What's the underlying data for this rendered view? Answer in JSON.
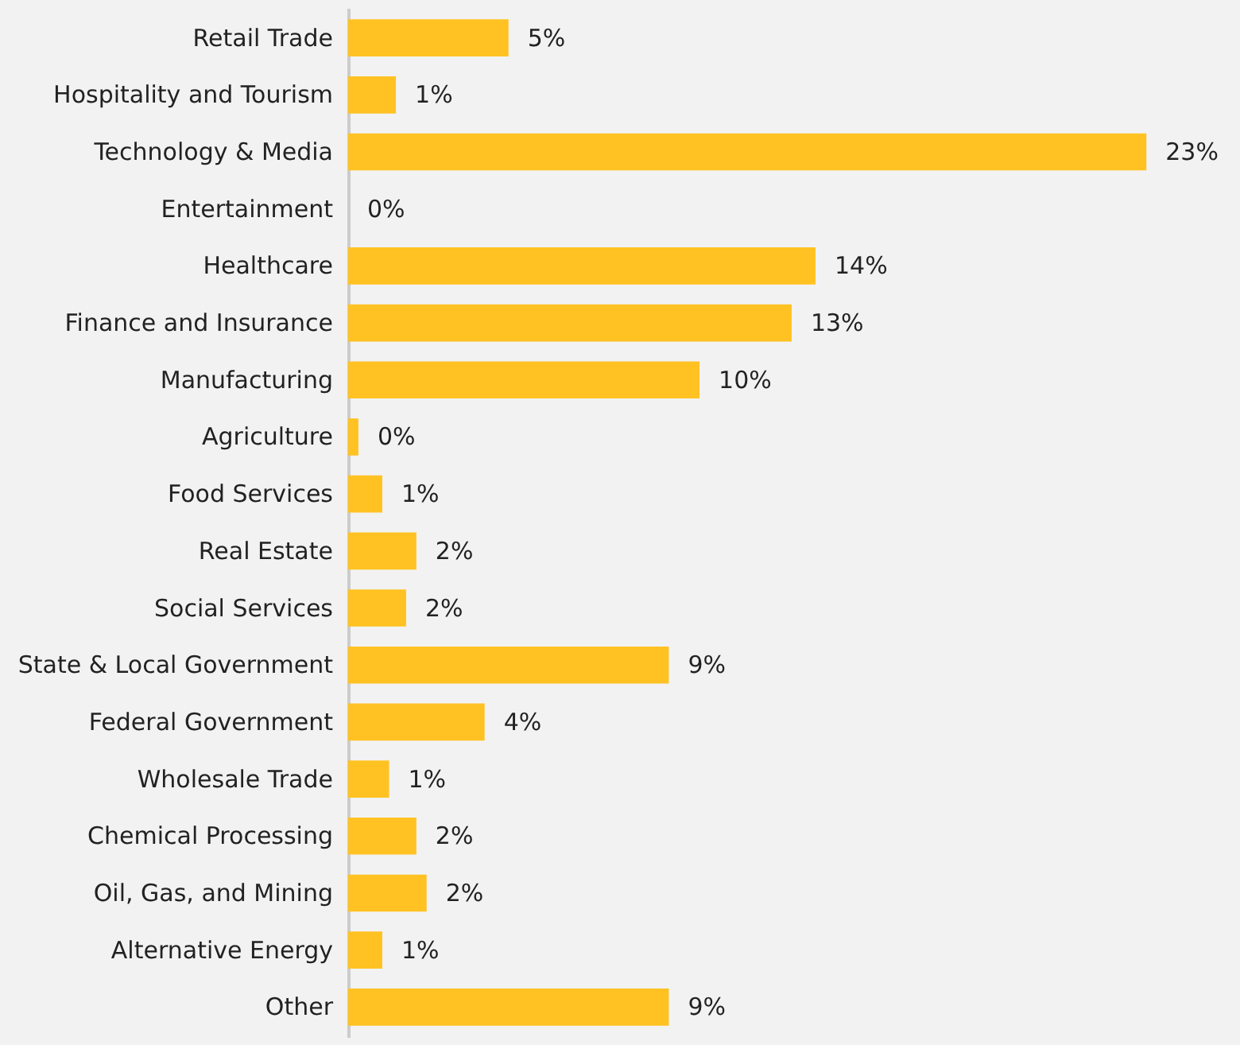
{
  "chart_data": {
    "type": "bar",
    "orientation": "horizontal",
    "color": "#ffc222",
    "categories": [
      "Retail Trade",
      "Hospitality and Tourism",
      "Technology & Media",
      "Entertainment",
      "Healthcare",
      "Finance and Insurance",
      "Manufacturing",
      "Agriculture",
      "Food Services",
      "Real Estate",
      "Social Services",
      "State & Local Government",
      "Federal Government",
      "Wholesale Trade",
      "Chemical Processing",
      "Oil, Gas, and Mining",
      "Alternative Energy",
      "Other"
    ],
    "values": [
      4.7,
      1.4,
      23.4,
      0,
      13.7,
      13.0,
      10.3,
      0.3,
      1.0,
      2.0,
      1.7,
      9.4,
      4.0,
      1.2,
      2.0,
      2.3,
      1.0,
      9.4
    ],
    "value_labels": [
      "5%",
      "1%",
      "23%",
      "0%",
      "14%",
      "13%",
      "10%",
      "0%",
      "1%",
      "2%",
      "2%",
      "9%",
      "4%",
      "1%",
      "2%",
      "2%",
      "1%",
      "9%"
    ],
    "grid": false,
    "tick_labels": "y"
  }
}
